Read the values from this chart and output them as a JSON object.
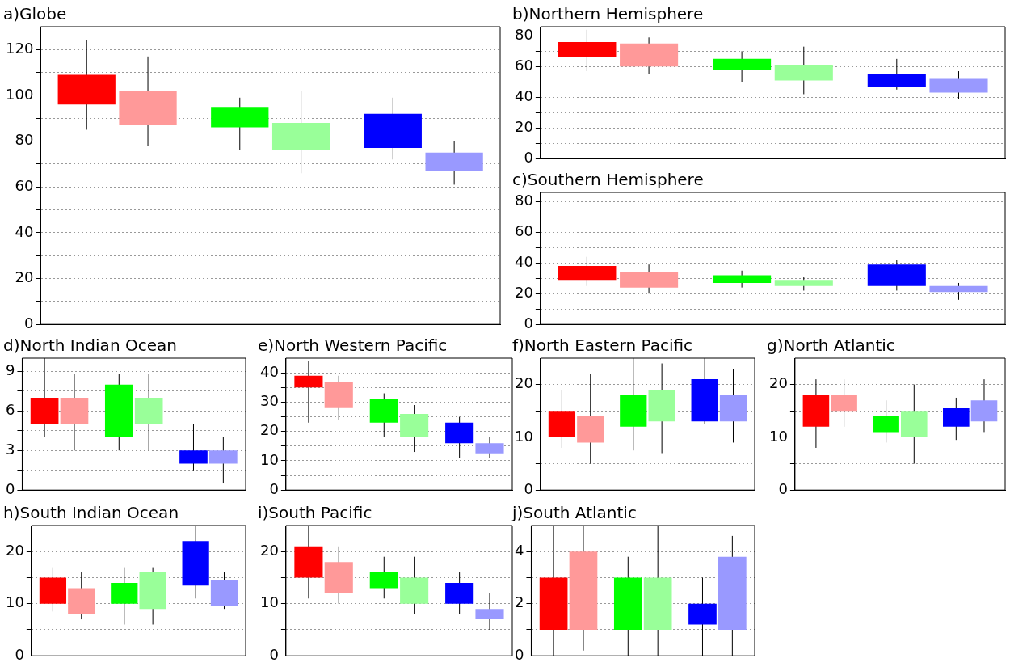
{
  "chart_data": [
    {
      "type": "bar",
      "title": "a)Globe",
      "categories": [
        null,
        null,
        null
      ],
      "ylim": [
        0,
        130
      ],
      "yticks": [
        0,
        {
          "value": 10,
          "label": null
        },
        20,
        {
          "value": 30,
          "label": null
        },
        40,
        {
          "value": 50,
          "label": null
        },
        60,
        {
          "value": 70,
          "label": null
        },
        80,
        {
          "value": 90,
          "label": null
        },
        100,
        {
          "value": 110,
          "label": null
        },
        120
      ],
      "grid": "y",
      "tick_labels": "y",
      "legend": false,
      "series": [
        {
          "colors": [
            "#ff0000",
            "#00ff00",
            "#0000ff"
          ],
          "base": [
            96,
            86,
            77
          ],
          "values": [
            13,
            9,
            15
          ],
          "errors": [
            [
              85,
              124
            ],
            [
              76,
              99
            ],
            [
              72,
              99
            ]
          ]
        },
        {
          "colors": [
            "#ff9999",
            "#99ff99",
            "#9999ff"
          ],
          "base": [
            87,
            76,
            67
          ],
          "values": [
            15,
            12,
            8
          ],
          "errors": [
            [
              78,
              117
            ],
            [
              66,
              102
            ],
            [
              61,
              80
            ]
          ]
        }
      ]
    },
    {
      "type": "bar",
      "title": "b)Northern Hemisphere",
      "categories": [
        null,
        null,
        null
      ],
      "ylim": [
        0,
        86
      ],
      "yticks": [
        0,
        {
          "value": 10,
          "label": null
        },
        20,
        {
          "value": 30,
          "label": null
        },
        40,
        {
          "value": 50,
          "label": null
        },
        60,
        {
          "value": 70,
          "label": null
        },
        80
      ],
      "grid": "y",
      "tick_labels": "y",
      "legend": false,
      "series": [
        {
          "colors": [
            "#ff0000",
            "#00ff00",
            "#0000ff"
          ],
          "base": [
            66,
            58,
            47
          ],
          "values": [
            10,
            7,
            8
          ],
          "errors": [
            [
              57,
              84
            ],
            [
              50,
              70
            ],
            [
              45,
              65
            ]
          ]
        },
        {
          "colors": [
            "#ff9999",
            "#99ff99",
            "#9999ff"
          ],
          "base": [
            60,
            51,
            43
          ],
          "values": [
            15,
            10,
            9
          ],
          "errors": [
            [
              55,
              79
            ],
            [
              42,
              73
            ],
            [
              39,
              57
            ]
          ]
        }
      ]
    },
    {
      "type": "bar",
      "title": "c)Southern Hemisphere",
      "categories": [
        null,
        null,
        null
      ],
      "ylim": [
        0,
        86
      ],
      "yticks": [
        0,
        {
          "value": 10,
          "label": null
        },
        20,
        {
          "value": 30,
          "label": null
        },
        40,
        {
          "value": 50,
          "label": null
        },
        60,
        {
          "value": 70,
          "label": null
        },
        80
      ],
      "grid": "y",
      "tick_labels": "y",
      "legend": false,
      "series": [
        {
          "colors": [
            "#ff0000",
            "#00ff00",
            "#0000ff"
          ],
          "base": [
            29,
            27,
            25
          ],
          "values": [
            9,
            5,
            14
          ],
          "errors": [
            [
              25,
              44
            ],
            [
              24,
              35
            ],
            [
              22,
              42
            ]
          ]
        },
        {
          "colors": [
            "#ff9999",
            "#99ff99",
            "#9999ff"
          ],
          "base": [
            24,
            25,
            21
          ],
          "values": [
            10,
            4,
            4
          ],
          "errors": [
            [
              20,
              39
            ],
            [
              22,
              31
            ],
            [
              16,
              27
            ]
          ]
        }
      ]
    },
    {
      "type": "bar",
      "title": "d)North Indian Ocean",
      "categories": [
        null,
        null,
        null
      ],
      "ylim": [
        0,
        10
      ],
      "yticks": [
        0,
        {
          "value": 1.5,
          "label": null
        },
        3,
        {
          "value": 4.5,
          "label": null
        },
        6,
        {
          "value": 7.5,
          "label": null
        },
        9
      ],
      "grid": "y",
      "tick_labels": "y",
      "legend": false,
      "series": [
        {
          "colors": [
            "#ff0000",
            "#00ff00",
            "#0000ff"
          ],
          "base": [
            5,
            4,
            2
          ],
          "values": [
            2,
            4,
            1
          ],
          "errors": [
            [
              4,
              10
            ],
            [
              3,
              8.8
            ],
            [
              1.5,
              5
            ]
          ]
        },
        {
          "colors": [
            "#ff9999",
            "#99ff99",
            "#9999ff"
          ],
          "base": [
            5,
            5,
            2
          ],
          "values": [
            2,
            2,
            1
          ],
          "errors": [
            [
              3,
              8.8
            ],
            [
              3,
              8.8
            ],
            [
              0.5,
              4
            ]
          ]
        }
      ]
    },
    {
      "type": "bar",
      "title": "e)North Western Pacific",
      "categories": [
        null,
        null,
        null
      ],
      "ylim": [
        0,
        45
      ],
      "yticks": [
        0,
        {
          "value": 5,
          "label": null
        },
        10,
        {
          "value": 15,
          "label": null
        },
        20,
        {
          "value": 25,
          "label": null
        },
        30,
        {
          "value": 35,
          "label": null
        },
        40
      ],
      "grid": "y",
      "tick_labels": "y",
      "legend": false,
      "series": [
        {
          "colors": [
            "#ff0000",
            "#00ff00",
            "#0000ff"
          ],
          "base": [
            35,
            23,
            16
          ],
          "values": [
            4,
            8,
            7
          ],
          "errors": [
            [
              23,
              44
            ],
            [
              18,
              33
            ],
            [
              11,
              25
            ]
          ]
        },
        {
          "colors": [
            "#ff9999",
            "#99ff99",
            "#9999ff"
          ],
          "base": [
            28,
            18,
            12.5
          ],
          "values": [
            9,
            8,
            3.5
          ],
          "errors": [
            [
              24,
              39
            ],
            [
              13,
              29
            ],
            [
              11,
              18
            ]
          ]
        }
      ]
    },
    {
      "type": "bar",
      "title": "f)North Eastern Pacific",
      "categories": [
        null,
        null,
        null
      ],
      "ylim": [
        0,
        25
      ],
      "yticks": [
        0,
        {
          "value": 5,
          "label": null
        },
        10,
        {
          "value": 15,
          "label": null
        },
        20
      ],
      "grid": "y",
      "tick_labels": "y",
      "legend": false,
      "series": [
        {
          "colors": [
            "#ff0000",
            "#00ff00",
            "#0000ff"
          ],
          "base": [
            10,
            12,
            13
          ],
          "values": [
            5,
            6,
            8
          ],
          "errors": [
            [
              8,
              19
            ],
            [
              7.5,
              25
            ],
            [
              12.5,
              25
            ]
          ]
        },
        {
          "colors": [
            "#ff9999",
            "#99ff99",
            "#9999ff"
          ],
          "base": [
            9,
            13,
            13
          ],
          "values": [
            5,
            6,
            5
          ],
          "errors": [
            [
              5,
              22
            ],
            [
              7,
              24
            ],
            [
              9,
              23
            ]
          ]
        }
      ]
    },
    {
      "type": "bar",
      "title": "g)North Atlantic",
      "categories": [
        null,
        null,
        null
      ],
      "ylim": [
        0,
        25
      ],
      "yticks": [
        0,
        {
          "value": 5,
          "label": null
        },
        10,
        {
          "value": 15,
          "label": null
        },
        20
      ],
      "grid": "y",
      "tick_labels": "y",
      "legend": false,
      "series": [
        {
          "colors": [
            "#ff0000",
            "#00ff00",
            "#0000ff"
          ],
          "base": [
            12,
            11,
            12
          ],
          "values": [
            6,
            3,
            3.5
          ],
          "errors": [
            [
              8,
              21
            ],
            [
              9,
              17
            ],
            [
              9.5,
              17.5
            ]
          ]
        },
        {
          "colors": [
            "#ff9999",
            "#99ff99",
            "#9999ff"
          ],
          "base": [
            15,
            10,
            13
          ],
          "values": [
            3,
            5,
            4
          ],
          "errors": [
            [
              12,
              21
            ],
            [
              5,
              20
            ],
            [
              11,
              21
            ]
          ]
        }
      ]
    },
    {
      "type": "bar",
      "title": "h)South Indian Ocean",
      "categories": [
        null,
        null,
        null
      ],
      "ylim": [
        0,
        25
      ],
      "yticks": [
        0,
        {
          "value": 5,
          "label": null
        },
        10,
        {
          "value": 15,
          "label": null
        },
        20
      ],
      "grid": "y",
      "tick_labels": "y",
      "legend": false,
      "series": [
        {
          "colors": [
            "#ff0000",
            "#00ff00",
            "#0000ff"
          ],
          "base": [
            10,
            10,
            13.5
          ],
          "values": [
            5,
            4,
            8.5
          ],
          "errors": [
            [
              8.5,
              17
            ],
            [
              6,
              17
            ],
            [
              11,
              25
            ]
          ]
        },
        {
          "colors": [
            "#ff9999",
            "#99ff99",
            "#9999ff"
          ],
          "base": [
            8,
            9,
            9.5
          ],
          "values": [
            5,
            7,
            5
          ],
          "errors": [
            [
              7,
              16
            ],
            [
              6,
              17
            ],
            [
              9,
              16
            ]
          ]
        }
      ]
    },
    {
      "type": "bar",
      "title": "i)South Pacific",
      "categories": [
        null,
        null,
        null
      ],
      "ylim": [
        0,
        25
      ],
      "yticks": [
        0,
        {
          "value": 5,
          "label": null
        },
        10,
        {
          "value": 15,
          "label": null
        },
        20
      ],
      "grid": "y",
      "tick_labels": "y",
      "legend": false,
      "series": [
        {
          "colors": [
            "#ff0000",
            "#00ff00",
            "#0000ff"
          ],
          "base": [
            15,
            13,
            10
          ],
          "values": [
            6,
            3,
            4
          ],
          "errors": [
            [
              11,
              25
            ],
            [
              11,
              19
            ],
            [
              8,
              16
            ]
          ]
        },
        {
          "colors": [
            "#ff9999",
            "#99ff99",
            "#9999ff"
          ],
          "base": [
            12,
            10,
            7
          ],
          "values": [
            6,
            5,
            2
          ],
          "errors": [
            [
              10,
              21
            ],
            [
              8,
              19
            ],
            [
              5,
              12
            ]
          ]
        }
      ]
    },
    {
      "type": "bar",
      "title": "j)South Atlantic",
      "categories": [
        null,
        null,
        null
      ],
      "ylim": [
        0,
        5
      ],
      "yticks": [
        0,
        {
          "value": 1,
          "label": null
        },
        2,
        {
          "value": 3,
          "label": null
        },
        4
      ],
      "grid": "y",
      "tick_labels": "y",
      "legend": false,
      "series": [
        {
          "colors": [
            "#ff0000",
            "#00ff00",
            "#0000ff"
          ],
          "base": [
            1,
            1,
            1.2
          ],
          "values": [
            2,
            2,
            0.8
          ],
          "errors": [
            [
              0,
              5
            ],
            [
              0,
              3.8
            ],
            [
              0,
              3
            ]
          ]
        },
        {
          "colors": [
            "#ff9999",
            "#99ff99",
            "#9999ff"
          ],
          "base": [
            1,
            1,
            1
          ],
          "values": [
            3,
            2,
            2.8
          ],
          "errors": [
            [
              0.2,
              5
            ],
            [
              0,
              5
            ],
            [
              0,
              4.6
            ]
          ]
        }
      ]
    }
  ]
}
